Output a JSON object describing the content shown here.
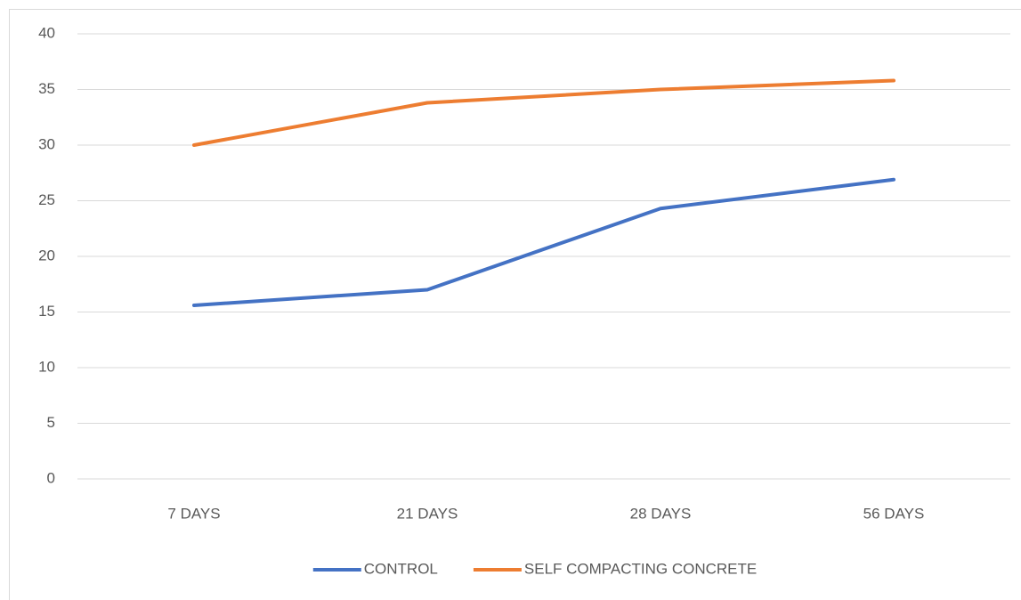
{
  "chart_data": {
    "type": "line",
    "categories": [
      "7 DAYS",
      "21 DAYS",
      "28 DAYS",
      "56 DAYS"
    ],
    "series": [
      {
        "name": "CONTROL",
        "color": "#4472c4",
        "values": [
          15.6,
          17,
          24.3,
          26.9
        ]
      },
      {
        "name": "SELF COMPACTING CONCRETE",
        "color": "#ed7d31",
        "values": [
          30,
          33.8,
          35,
          35.8
        ]
      }
    ],
    "ylim": [
      0,
      40
    ],
    "yticks": [
      0,
      5,
      10,
      15,
      20,
      25,
      30,
      35,
      40
    ],
    "grid": true,
    "legend": "bottom"
  }
}
